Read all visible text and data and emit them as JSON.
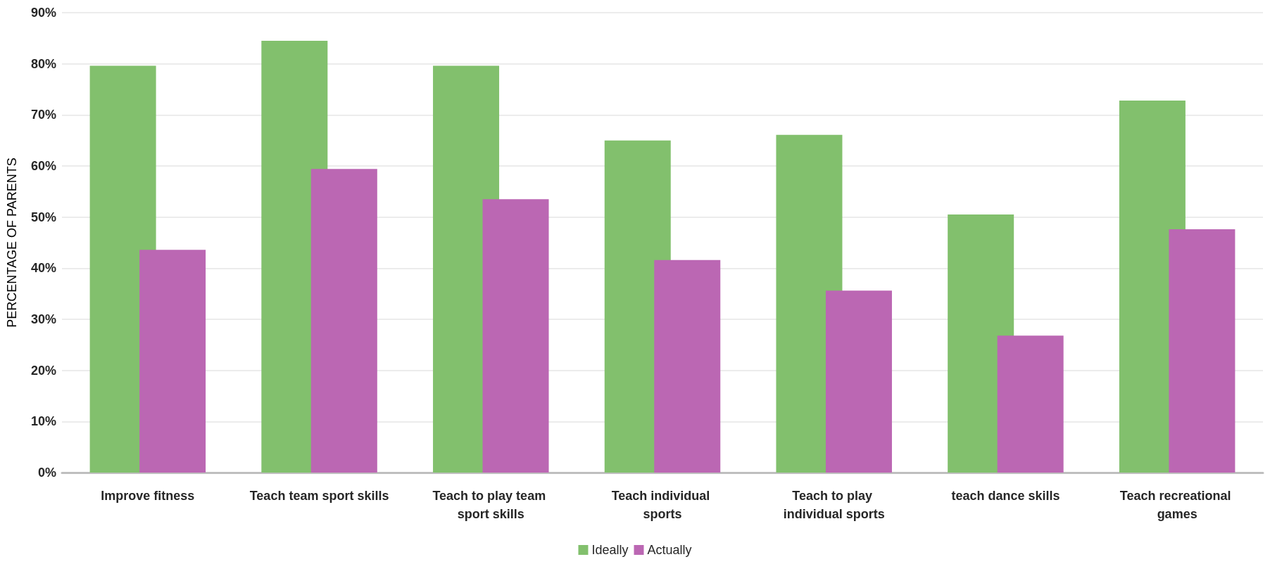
{
  "chart_data": {
    "type": "bar",
    "ylabel": "PERCENTAGE OF PARENTS",
    "categories": [
      "Improve fitness",
      "Teach team sport skills",
      "Teach to play team sport skills",
      "Teach individual sports",
      "Teach to play individual sports",
      "teach dance skills",
      "Teach recreational games"
    ],
    "series": [
      {
        "name": "Ideally",
        "color": "#82c06d",
        "values": [
          79.6,
          84.5,
          79.6,
          65,
          66.1,
          50.5,
          72.8
        ]
      },
      {
        "name": "Actually",
        "color": "#bb67b3",
        "values": [
          43.6,
          59.4,
          53.5,
          41.6,
          35.6,
          26.8,
          47.6
        ]
      }
    ],
    "ylim": [
      0,
      90
    ],
    "yticks": [
      {
        "value": 0,
        "label": "0%"
      },
      {
        "value": 10,
        "label": "10%"
      },
      {
        "value": 20,
        "label": "20%"
      },
      {
        "value": 30,
        "label": "30%"
      },
      {
        "value": 40,
        "label": "40%"
      },
      {
        "value": 50,
        "label": "50%"
      },
      {
        "value": 60,
        "label": "60%"
      },
      {
        "value": 70,
        "label": "70%"
      },
      {
        "value": 80,
        "label": "80%"
      },
      {
        "value": 90,
        "label": "90%"
      }
    ],
    "grid": "y",
    "legend": "bottom"
  }
}
